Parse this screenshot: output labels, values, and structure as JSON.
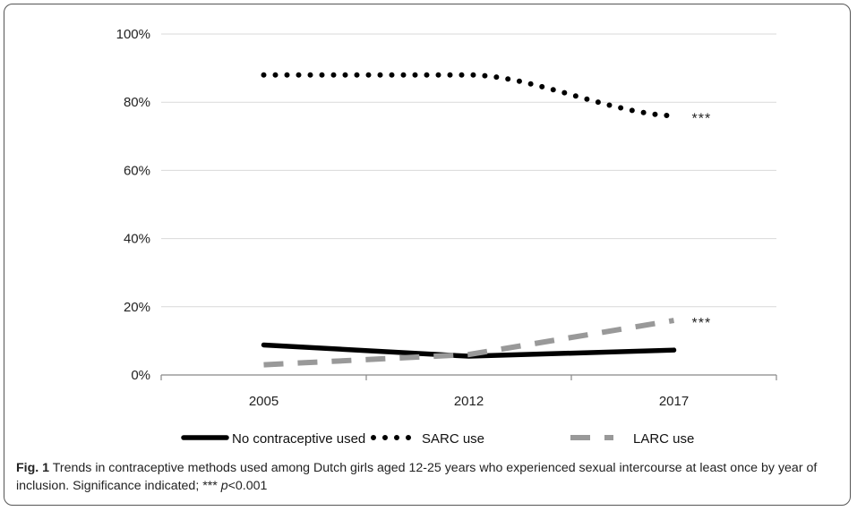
{
  "chart_data": {
    "type": "line",
    "categories": [
      "2005",
      "2012",
      "2017"
    ],
    "y_ticks": [
      "0%",
      "20%",
      "40%",
      "60%",
      "80%",
      "100%"
    ],
    "ylim": [
      0,
      100
    ],
    "grid": true,
    "legend_position": "bottom",
    "series": [
      {
        "name": "No contraceptive used",
        "values": [
          8.8,
          5.5,
          7.3
        ],
        "style": "solid",
        "color": "#000000",
        "significance": ""
      },
      {
        "name": "SARC use",
        "values": [
          88,
          88,
          76
        ],
        "style": "dotted",
        "color": "#000000",
        "significance": "***"
      },
      {
        "name": "LARC use",
        "values": [
          3,
          6,
          16
        ],
        "style": "dashed",
        "color": "#999999",
        "significance": "***"
      }
    ]
  },
  "caption": {
    "label": "Fig. 1",
    "text": "Trends in contraceptive methods used among Dutch girls aged 12-25 years who experienced sexual intercourse at least once by year of inclusion. Significance indicated; ***",
    "p_symbol": "p",
    "p_value": "<0.001"
  }
}
